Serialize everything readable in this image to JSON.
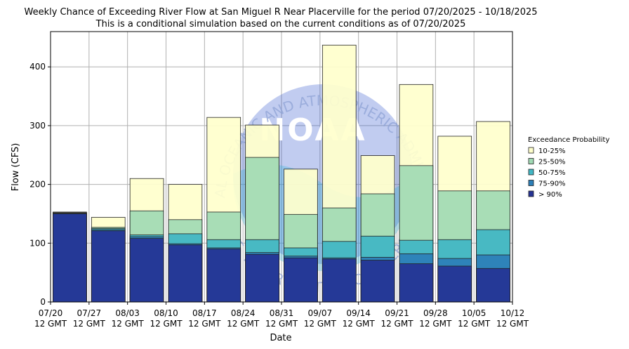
{
  "chart_data": {
    "type": "bar",
    "stacked": true,
    "title": "Weekly Chance of Exceeding River Flow at San Miguel R Near Placerville for the period 07/20/2025 - 10/18/2025",
    "subtitle": "This is a conditional simulation based on the current conditions as of 07/20/2025",
    "xlabel": "Date",
    "ylabel": "Flow (CFS)",
    "ylim": [
      0,
      460
    ],
    "yticks": [
      0,
      100,
      200,
      300,
      400
    ],
    "xticks": [
      {
        "line1": "07/20",
        "line2": "12 GMT"
      },
      {
        "line1": "07/27",
        "line2": "12 GMT"
      },
      {
        "line1": "08/03",
        "line2": "12 GMT"
      },
      {
        "line1": "08/10",
        "line2": "12 GMT"
      },
      {
        "line1": "08/17",
        "line2": "12 GMT"
      },
      {
        "line1": "08/24",
        "line2": "12 GMT"
      },
      {
        "line1": "08/31",
        "line2": "12 GMT"
      },
      {
        "line1": "09/07",
        "line2": "12 GMT"
      },
      {
        "line1": "09/14",
        "line2": "12 GMT"
      },
      {
        "line1": "09/21",
        "line2": "12 GMT"
      },
      {
        "line1": "09/28",
        "line2": "12 GMT"
      },
      {
        "line1": "10/05",
        "line2": "12 GMT"
      },
      {
        "line1": "10/12",
        "line2": "12 GMT"
      }
    ],
    "grid": true,
    "legend_title": "Exceedance Probability",
    "legend_position": "right",
    "series": [
      {
        "name": "10-25%",
        "color": "#ffffcc",
        "tops": [
          153,
          144,
          210,
          200,
          314,
          301,
          226,
          437,
          249,
          370,
          282,
          307
        ]
      },
      {
        "name": "25-50%",
        "color": "#a1dab4",
        "tops": [
          152,
          127,
          155,
          140,
          153,
          246,
          149,
          160,
          184,
          232,
          189,
          189
        ]
      },
      {
        "name": "50-75%",
        "color": "#41b6c4",
        "tops": [
          151,
          125,
          114,
          116,
          106,
          106,
          92,
          103,
          112,
          105,
          106,
          123
        ]
      },
      {
        "name": "75-90%",
        "color": "#2c7fb8",
        "tops": [
          151,
          123,
          111,
          99,
          92,
          84,
          78,
          75,
          76,
          82,
          74,
          80
        ]
      },
      {
        "name": "> 90%",
        "color": "#253494",
        "tops": [
          150,
          121,
          108,
          97,
          90,
          81,
          75,
          73,
          71,
          65,
          61,
          57
        ]
      }
    ]
  },
  "watermark": {
    "logo_text": "NOAA",
    "arc_top": "NATIONAL OCEANIC AND ATMOSPHERIC ADMINISTRATION",
    "arc_bottom": "U.S. DEPARTMENT OF COMMERCE"
  }
}
